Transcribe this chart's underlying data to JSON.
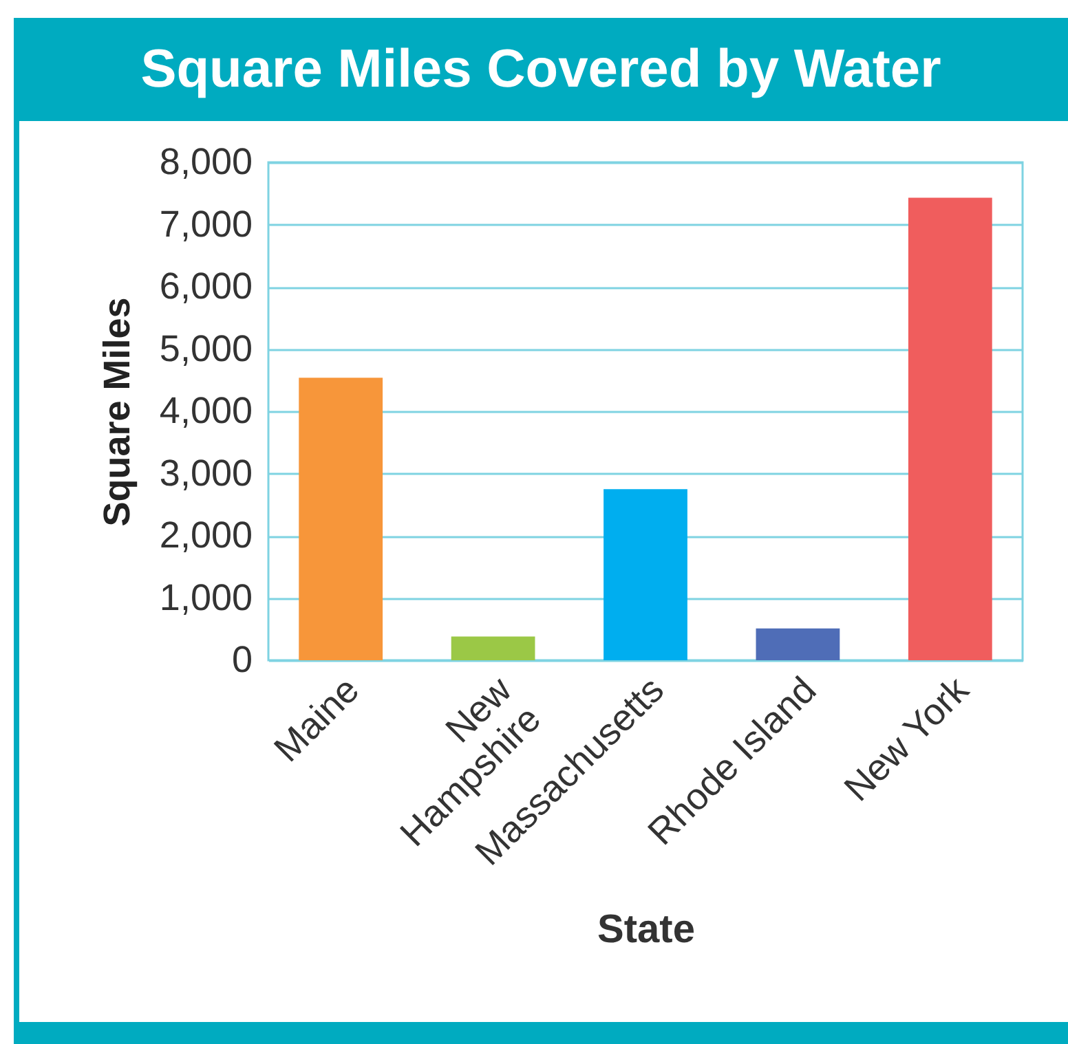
{
  "chart_data": {
    "type": "bar",
    "title": "Square Miles Covered by Water",
    "xlabel": "State",
    "ylabel": "Square Miles",
    "categories": [
      "Maine",
      "New Hampshire",
      "Massachusetts",
      "Rhode Island",
      "New York"
    ],
    "values": [
      4540,
      380,
      2750,
      510,
      7430
    ],
    "colors": [
      "#f7963a",
      "#9bc846",
      "#00aeef",
      "#4f6db7",
      "#f05d5d"
    ],
    "ylim": [
      0,
      8000
    ],
    "yticks": [
      0,
      {
        "value": 1000,
        "label": "1,000"
      },
      {
        "value": 2000,
        "label": "2,000"
      },
      {
        "value": 3000,
        "label": "3,000"
      },
      {
        "value": 4000,
        "label": "4,000"
      },
      {
        "value": 5000,
        "label": "5,000"
      },
      {
        "value": 6000,
        "label": "6,000"
      },
      {
        "value": 7000,
        "label": "7,000"
      },
      {
        "value": 8000,
        "label": "8,000"
      }
    ],
    "grid": true
  }
}
